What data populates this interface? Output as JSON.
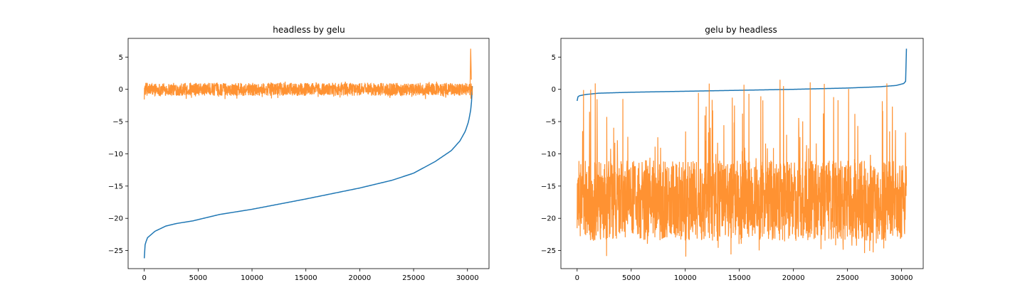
{
  "chart_data": [
    {
      "type": "line",
      "title": "headless by gelu",
      "xlabel": "",
      "ylabel": "",
      "xlim": [
        -1500,
        32000
      ],
      "ylim": [
        -27.8,
        7.9
      ],
      "xticks": [
        0,
        5000,
        10000,
        15000,
        20000,
        25000,
        30000
      ],
      "xtick_labels": [
        "0",
        "5000",
        "10000",
        "15000",
        "20000",
        "25000",
        "30000"
      ],
      "yticks": [
        5,
        0,
        -5,
        -10,
        -15,
        -20,
        -25
      ],
      "ytick_labels": [
        "5",
        "0",
        "−5",
        "−10",
        "−15",
        "−20",
        "−25"
      ],
      "grid": false,
      "series": [
        {
          "color": "#1f77b4",
          "kind": "sorted-curve",
          "x": [
            0,
            80,
            300,
            1000,
            2000,
            3000,
            4500,
            7000,
            10000,
            15000,
            20000,
            23000,
            25000,
            27000,
            28500,
            29300,
            29800,
            30100,
            30300,
            30400,
            30450
          ],
          "values": [
            -26.2,
            -24.0,
            -23.0,
            -22.0,
            -21.2,
            -20.8,
            -20.4,
            -19.4,
            -18.6,
            -17.0,
            -15.3,
            -14.1,
            -13.0,
            -11.2,
            -9.5,
            -8.0,
            -6.5,
            -5.0,
            -3.2,
            -1.5,
            0.5
          ]
        },
        {
          "color": "#ff7f0e",
          "kind": "noise",
          "x_range": [
            0,
            30450
          ],
          "center": [
            0,
            0
          ],
          "spread": [
            -1.0,
            1.0
          ],
          "outlier_range": [
            -1.6,
            1.2
          ],
          "spike": {
            "x": 30300,
            "value": 6.3
          }
        }
      ]
    },
    {
      "type": "line",
      "title": "gelu by headless",
      "xlabel": "",
      "ylabel": "",
      "xlim": [
        -1500,
        32000
      ],
      "ylim": [
        -27.8,
        7.9
      ],
      "xticks": [
        0,
        5000,
        10000,
        15000,
        20000,
        25000,
        30000
      ],
      "xtick_labels": [
        "0",
        "5000",
        "10000",
        "15000",
        "20000",
        "25000",
        "30000"
      ],
      "yticks": [
        5,
        0,
        -5,
        -10,
        -15,
        -20,
        -25
      ],
      "ytick_labels": [
        "5",
        "0",
        "−5",
        "−10",
        "−15",
        "−20",
        "−25"
      ],
      "grid": false,
      "series": [
        {
          "color": "#1f77b4",
          "kind": "sorted-curve",
          "x": [
            0,
            50,
            200,
            800,
            2000,
            5000,
            10000,
            15000,
            20000,
            25000,
            28000,
            29500,
            30200,
            30400,
            30450
          ],
          "values": [
            -1.8,
            -1.2,
            -1.0,
            -0.8,
            -0.6,
            -0.45,
            -0.3,
            -0.15,
            0.0,
            0.2,
            0.4,
            0.6,
            0.9,
            1.3,
            6.3
          ]
        },
        {
          "color": "#ff7f0e",
          "kind": "noise",
          "x_range": [
            0,
            30450
          ],
          "center": [
            -17.5,
            -16.0
          ],
          "spread": [
            -23.5,
            -11.0
          ],
          "outlier_range": [
            -26.0,
            1.5
          ],
          "spike": null
        }
      ]
    }
  ]
}
